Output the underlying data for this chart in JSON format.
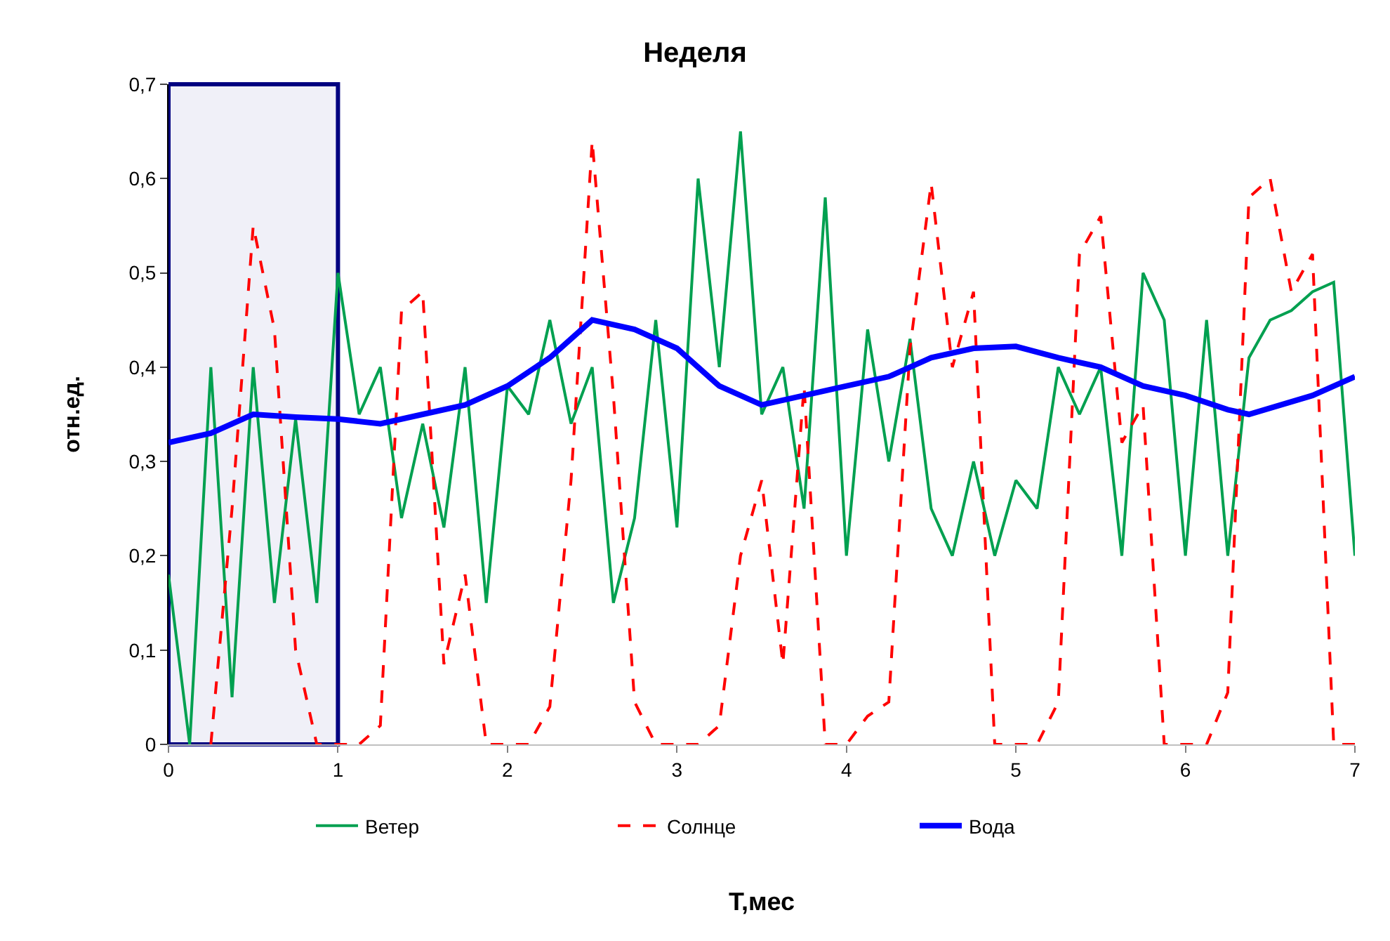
{
  "chart_data": {
    "type": "line",
    "title": "Неделя",
    "xlabel": "T,мес",
    "ylabel": "отн.ед.",
    "x": [
      0,
      0.125,
      0.25,
      0.375,
      0.5,
      0.625,
      0.75,
      0.875,
      1,
      1.125,
      1.25,
      1.375,
      1.5,
      1.625,
      1.75,
      1.875,
      2,
      2.125,
      2.25,
      2.375,
      2.5,
      2.625,
      2.75,
      2.875,
      3,
      3.125,
      3.25,
      3.375,
      3.5,
      3.625,
      3.75,
      3.875,
      4,
      4.125,
      4.25,
      4.375,
      4.5,
      4.625,
      4.75,
      4.875,
      5,
      5.125,
      5.25,
      5.375,
      5.5,
      5.625,
      5.75,
      5.875,
      6,
      6.125,
      6.25,
      6.375,
      6.5,
      6.625,
      6.75,
      6.875,
      7
    ],
    "series": [
      {
        "name": "Ветер",
        "color": "#00a050",
        "line_style": "solid",
        "values": [
          0.18,
          0,
          0.4,
          0.05,
          0.4,
          0.15,
          0.345,
          0.15,
          0.5,
          0.35,
          0.4,
          0.24,
          0.34,
          0.23,
          0.4,
          0.15,
          0.38,
          0.35,
          0.45,
          0.34,
          0.4,
          0.15,
          0.24,
          0.45,
          0.23,
          0.6,
          0.4,
          0.65,
          0.35,
          0.4,
          0.25,
          0.58,
          0.2,
          0.44,
          0.3,
          0.43,
          0.25,
          0.2,
          0.3,
          0.2,
          0.28,
          0.25,
          0.4,
          0.35,
          0.4,
          0.2,
          0.5,
          0.45,
          0.2,
          0.45,
          0.2,
          0.41,
          0.45,
          0.46,
          0.48,
          0.49,
          0.2
        ]
      },
      {
        "name": "Солнце",
        "color": "#ff0000",
        "line_style": "dashed",
        "values": [
          null,
          null,
          0,
          0.25,
          0.55,
          0.44,
          0.1,
          0,
          0,
          0,
          0.02,
          0.46,
          0.48,
          0.085,
          0.18,
          0,
          0,
          0,
          0.04,
          0.28,
          0.64,
          0.37,
          0.045,
          0,
          0,
          0,
          0.02,
          0.2,
          0.28,
          0.085,
          0.38,
          0,
          0,
          0.03,
          0.045,
          0.42,
          0.595,
          0.4,
          0.48,
          0,
          0,
          0,
          0.045,
          0.52,
          0.56,
          0.32,
          0.36,
          0,
          0,
          0,
          0.055,
          0.58,
          0.6,
          0.48,
          0.52,
          0,
          0
        ]
      },
      {
        "name": "Вода",
        "color": "#0000ff",
        "line_style": "solid",
        "x": [
          0,
          0.25,
          0.5,
          0.75,
          1,
          1.25,
          1.5,
          1.75,
          2,
          2.25,
          2.5,
          2.75,
          3,
          3.25,
          3.5,
          3.75,
          4,
          4.25,
          4.5,
          4.75,
          5,
          5.25,
          5.5,
          5.75,
          6,
          6.25,
          6.375,
          6.75,
          7
        ],
        "values": [
          0.32,
          0.33,
          0.35,
          0.347,
          0.345,
          0.34,
          0.35,
          0.36,
          0.38,
          0.41,
          0.45,
          0.44,
          0.42,
          0.38,
          0.36,
          0.37,
          0.38,
          0.39,
          0.41,
          0.42,
          0.422,
          0.41,
          0.4,
          0.38,
          0.37,
          0.355,
          0.35,
          0.37,
          0.39
        ]
      }
    ],
    "xlim": [
      0,
      7
    ],
    "xticks": [
      0,
      1,
      2,
      3,
      4,
      5,
      6,
      7
    ],
    "ylim": [
      0,
      0.7
    ],
    "yticks": [
      0,
      {
        "value": 0.1,
        "label": "0,1"
      },
      {
        "value": 0.2,
        "label": "0,2"
      },
      {
        "value": 0.3,
        "label": "0,3"
      },
      {
        "value": 0.4,
        "label": "0,4"
      },
      {
        "value": 0.5,
        "label": "0,5"
      },
      {
        "value": 0.6,
        "label": "0,6"
      },
      {
        "value": 0.7,
        "label": "0,7"
      }
    ],
    "bands": [
      {
        "axis": "x",
        "from": 0,
        "to": 1,
        "color": "#000080"
      }
    ],
    "grid": false,
    "legend": "bottom",
    "marker": "none"
  }
}
